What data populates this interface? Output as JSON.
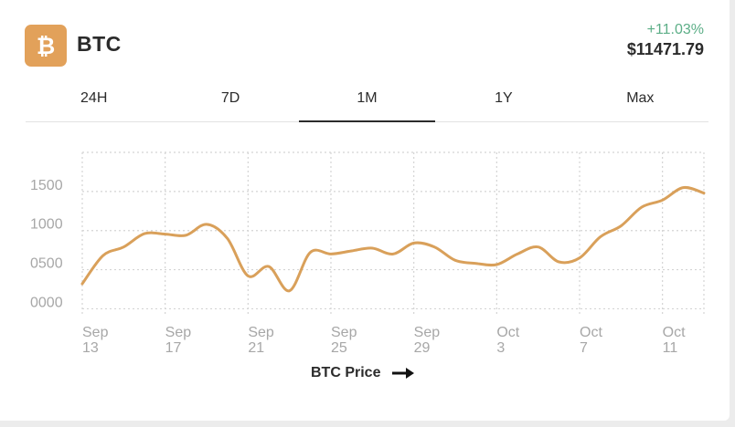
{
  "coin": {
    "symbol": "BTC",
    "icon": "bitcoin-icon",
    "icon_glyph": "₿",
    "change": "+11.03%",
    "price": "$11471.79"
  },
  "colors": {
    "brand": "#e2a15a",
    "line": "#d9a05a",
    "positive": "#5cae87",
    "grid": "#d4d4d4",
    "axis_text": "#a7a7a7"
  },
  "tabs": [
    {
      "label": "24H",
      "active": false
    },
    {
      "label": "7D",
      "active": false
    },
    {
      "label": "1M",
      "active": true
    },
    {
      "label": "1Y",
      "active": false
    },
    {
      "label": "Max",
      "active": false
    }
  ],
  "footer": {
    "label": "BTC Price",
    "icon": "right-arrow-icon"
  },
  "chart_data": {
    "type": "line",
    "series": [
      {
        "values": [
          320,
          680,
          790,
          960,
          955,
          940,
          1080,
          900,
          420,
          540,
          230,
          720,
          700,
          740,
          775,
          700,
          840,
          790,
          620,
          580,
          565,
          700,
          790,
          600,
          650,
          920,
          1060,
          1300,
          1390,
          1550,
          1480
        ]
      }
    ],
    "x_domain": [
      0,
      30
    ],
    "x_ticks": [
      {
        "x": 0,
        "label": [
          "Sep",
          "13"
        ]
      },
      {
        "x": 4,
        "label": [
          "Sep",
          "17"
        ]
      },
      {
        "x": 8,
        "label": [
          "Sep",
          "21"
        ]
      },
      {
        "x": 12,
        "label": [
          "Sep",
          "25"
        ]
      },
      {
        "x": 16,
        "label": [
          "Sep",
          "29"
        ]
      },
      {
        "x": 20,
        "label": [
          "Oct",
          "3"
        ]
      },
      {
        "x": 24,
        "label": [
          "Oct",
          "7"
        ]
      },
      {
        "x": 28,
        "label": [
          "Oct",
          "11"
        ]
      }
    ],
    "y_ticks": [
      {
        "value": 0,
        "label": "0000"
      },
      {
        "value": 500,
        "label": "0500"
      },
      {
        "value": 1000,
        "label": "1000"
      },
      {
        "value": 1500,
        "label": "1500"
      }
    ],
    "ylim": [
      -100,
      2000
    ],
    "grid": true,
    "grid_style": "dotted",
    "xlabel": "BTC Price"
  }
}
